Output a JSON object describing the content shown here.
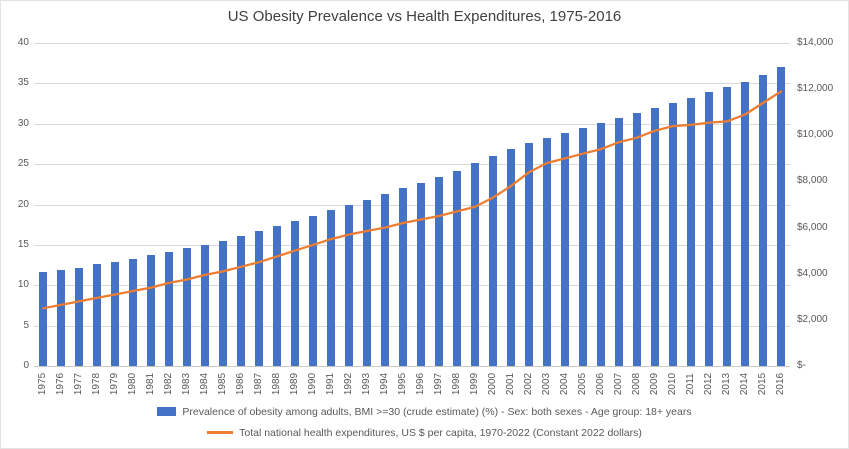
{
  "title": "US Obesity Prevalence vs Health Expenditures, 1975-2016",
  "chart_data": {
    "type": "combo-bar-line",
    "categories": [
      "1975",
      "1976",
      "1977",
      "1978",
      "1979",
      "1980",
      "1981",
      "1982",
      "1983",
      "1984",
      "1985",
      "1986",
      "1987",
      "1988",
      "1989",
      "1990",
      "1991",
      "1992",
      "1993",
      "1994",
      "1995",
      "1996",
      "1997",
      "1998",
      "1999",
      "2000",
      "2001",
      "2002",
      "2003",
      "2004",
      "2005",
      "2006",
      "2007",
      "2008",
      "2009",
      "2010",
      "2011",
      "2012",
      "2013",
      "2014",
      "2015",
      "2016"
    ],
    "series": [
      {
        "name": "Prevalence of obesity among adults, BMI >=30 (crude estimate) (%) - Sex: both sexes - Age group: 18+  years",
        "type": "bar",
        "axis": "left",
        "color": "#4472C4",
        "values": [
          11.6,
          11.9,
          12.2,
          12.6,
          12.9,
          13.3,
          13.7,
          14.1,
          14.6,
          15.0,
          15.5,
          16.1,
          16.7,
          17.3,
          18.0,
          18.6,
          19.3,
          20.0,
          20.6,
          21.3,
          22.0,
          22.7,
          23.4,
          24.2,
          25.1,
          26.0,
          26.9,
          27.6,
          28.2,
          28.9,
          29.5,
          30.1,
          30.7,
          31.3,
          32.0,
          32.6,
          33.2,
          33.9,
          34.5,
          35.2,
          36.1,
          37.0
        ]
      },
      {
        "name": "Total national health expenditures, US $ per capita, 1970-2022 (Constant 2022 dollars)",
        "type": "line",
        "axis": "right",
        "color": "#ED7D31",
        "values": [
          2500,
          2650,
          2800,
          2950,
          3100,
          3250,
          3400,
          3600,
          3750,
          3950,
          4100,
          4300,
          4500,
          4750,
          5000,
          5250,
          5500,
          5700,
          5850,
          6000,
          6200,
          6350,
          6500,
          6700,
          6900,
          7300,
          7800,
          8400,
          8800,
          9000,
          9200,
          9400,
          9700,
          9900,
          10200,
          10400,
          10450,
          10550,
          10600,
          10900,
          11400,
          11900
        ]
      }
    ],
    "left_axis": {
      "min": 0,
      "max": 40,
      "ticks": [
        "0",
        "5",
        "10",
        "15",
        "20",
        "25",
        "30",
        "35",
        "40"
      ]
    },
    "right_axis": {
      "min": 0,
      "max": 14000,
      "ticks": [
        "$-",
        "$2,000",
        "$4,000",
        "$6,000",
        "$8,000",
        "$10,000",
        "$12,000",
        "$14,000"
      ]
    },
    "grid": true,
    "legend_position": "bottom"
  },
  "colors": {
    "bar": "#4472C4",
    "line": "#ED7D31",
    "gridline": "#D9D9D9",
    "axis_text": "#595959",
    "title_text": "#404040"
  }
}
